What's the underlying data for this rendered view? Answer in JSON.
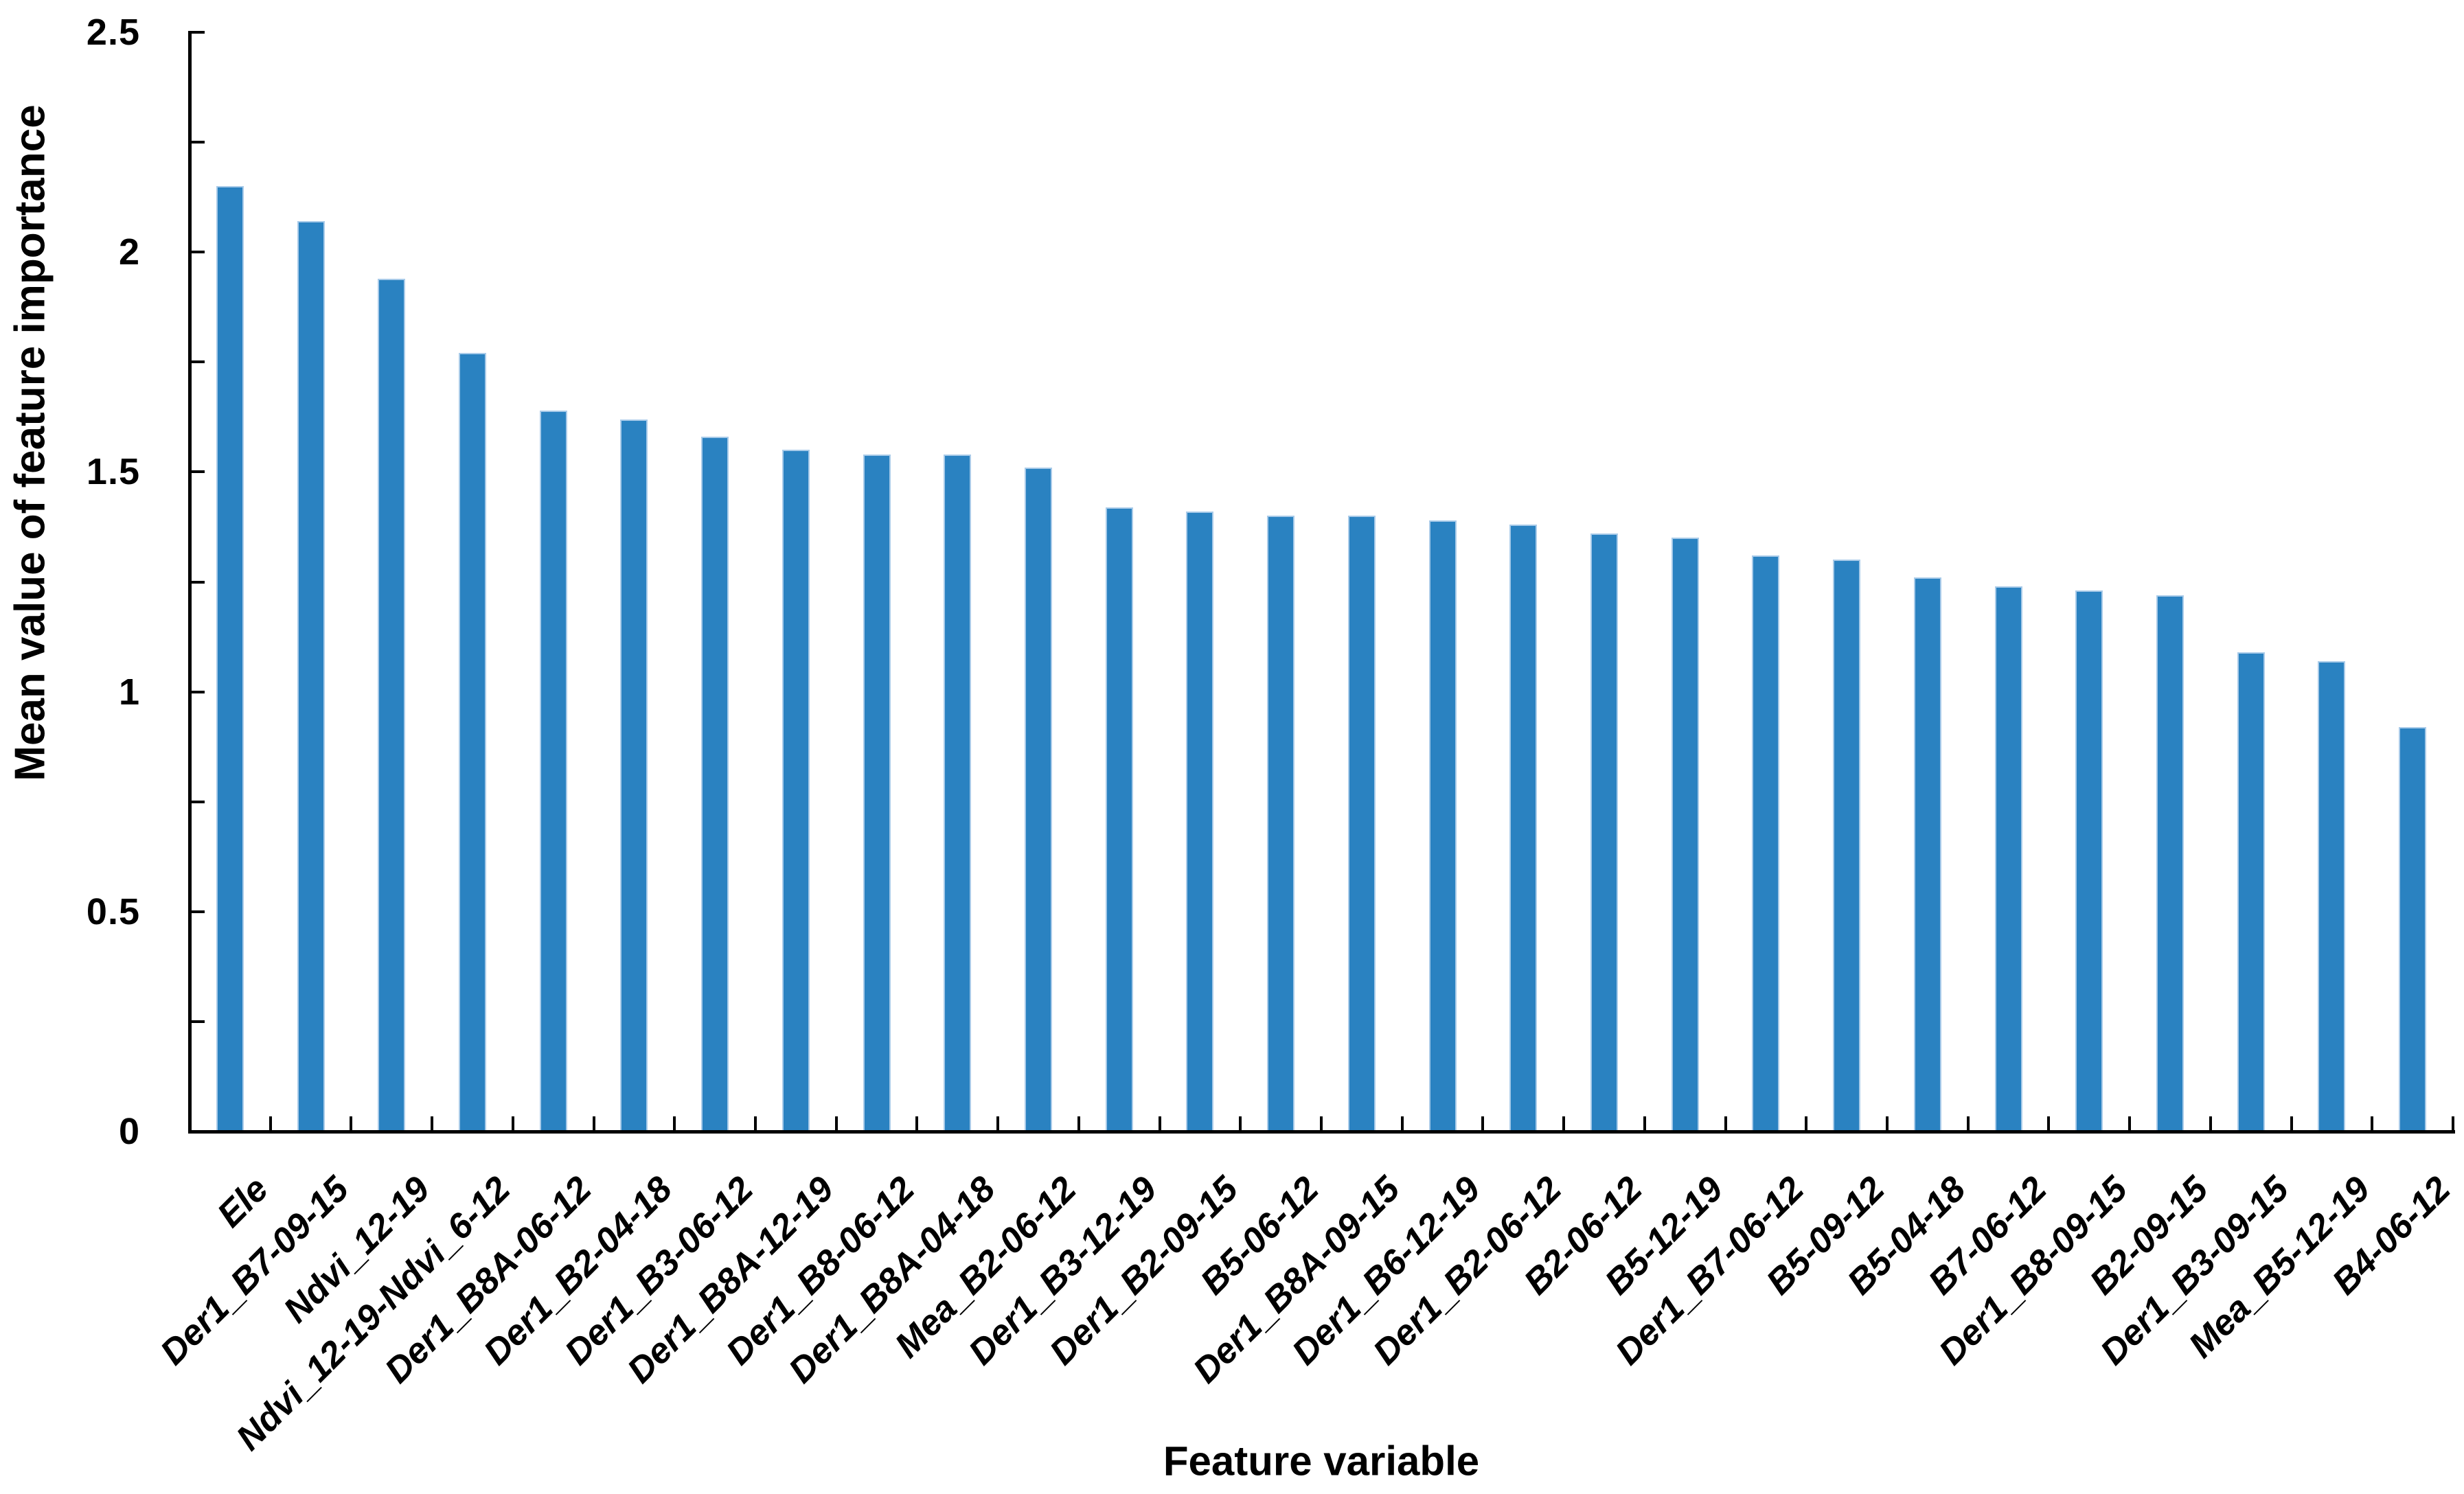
{
  "chart_data": {
    "type": "bar",
    "title": "",
    "xlabel": "Feature variable",
    "ylabel": "Mean value of feature importance",
    "categories": [
      "Ele",
      "Der1_B7-09-15",
      "Ndvi_12-19",
      "Ndvi_12-19-Ndvi_6-12",
      "Der1_B8A-06-12",
      "Der1_B2-04-18",
      "Der1_B3-06-12",
      "Der1_B8A-12-19",
      "Der1_B8-06-12",
      "Der1_B8A-04-18",
      "Mea_B2-06-12",
      "Der1_B3-12-19",
      "Der1_B2-09-15",
      "B5-06-12",
      "Der1_B8A-09-15",
      "Der1_B6-12-19",
      "Der1_B2-06-12",
      "B2-06-12",
      "B5-12-19",
      "Der1_B7-06-12",
      "B5-09-12",
      "B5-04-18",
      "B7-06-12",
      "Der1_B8-09-15",
      "B2-09-15",
      "Der1_B3-09-15",
      "Mea_B5-12-19",
      "B4-06-12"
    ],
    "values": [
      2.15,
      2.07,
      1.94,
      1.77,
      1.64,
      1.62,
      1.58,
      1.55,
      1.54,
      1.54,
      1.51,
      1.42,
      1.41,
      1.4,
      1.4,
      1.39,
      1.38,
      1.36,
      1.35,
      1.31,
      1.3,
      1.26,
      1.24,
      1.23,
      1.22,
      1.09,
      1.07,
      0.92
    ],
    "ylim": [
      0,
      2.5
    ],
    "ytick_major_step": 0.5,
    "ytick_minor_step": 0.25,
    "ytick_labels": [
      "0",
      "0.5",
      "1",
      "1.5",
      "2",
      "2.5"
    ],
    "grid": "off",
    "legend": "none",
    "bar_color": "#2A82C1",
    "bar_edge_color": "#A9CBE9",
    "axis_color": "#000000",
    "text_color": "#000000",
    "background_color": "#ffffff"
  }
}
